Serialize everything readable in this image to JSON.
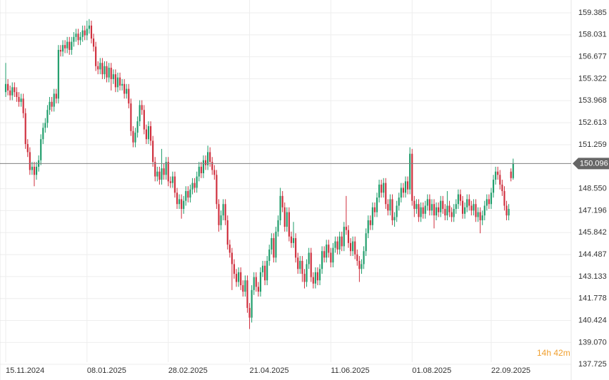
{
  "chart_data": {
    "type": "candlestick",
    "up_color": "#1f9d6b",
    "down_color": "#cf2f3d",
    "price_line_color": "#808080",
    "price_tag_color": "#666666",
    "countdown_color": "#f0a030",
    "grid": true,
    "countdown": "14h 42m",
    "last_price": 150.096,
    "ylim": [
      136.758,
      160.176
    ],
    "yticks": [
      159.385,
      158.031,
      156.677,
      155.322,
      153.968,
      152.613,
      151.259,
      {
        "value": 148.55,
        "label": "148.550"
      },
      147.196,
      145.842,
      144.487,
      143.133,
      141.778,
      140.424,
      {
        "value": 139.07,
        "label": "139.070"
      },
      137.725
    ],
    "xlim": [
      -2.6,
      257.4
    ],
    "xticks": [
      {
        "value": 0,
        "label": "15.11.2024"
      },
      {
        "value": 37,
        "label": "08.01.2025"
      },
      {
        "value": 74,
        "label": "28.02.2025"
      },
      {
        "value": 111,
        "label": "21.04.2025"
      },
      {
        "value": 148,
        "label": "11.06.2025"
      },
      {
        "value": 185,
        "label": "01.08.2025"
      },
      {
        "value": 221,
        "label": "22.09.2025"
      }
    ],
    "ohlc": [
      [
        154.5,
        156.3,
        154.2,
        155.0
      ],
      [
        155.0,
        155.3,
        154.3,
        154.6
      ],
      [
        154.6,
        154.9,
        154.0,
        154.3
      ],
      [
        154.3,
        155.1,
        154.0,
        154.8
      ],
      [
        154.8,
        155.1,
        154.2,
        154.5
      ],
      [
        154.5,
        154.8,
        153.9,
        154.2
      ],
      [
        154.2,
        154.5,
        153.6,
        153.9
      ],
      [
        153.9,
        154.4,
        153.6,
        154.1
      ],
      [
        154.1,
        154.4,
        152.9,
        153.2
      ],
      [
        153.2,
        153.5,
        151.0,
        151.3
      ],
      [
        151.3,
        151.6,
        150.5,
        150.8
      ],
      [
        150.8,
        151.1,
        149.4,
        149.7
      ],
      [
        149.7,
        150.2,
        149.4,
        149.9
      ],
      [
        149.9,
        150.2,
        148.7,
        149.4
      ],
      [
        149.4,
        150.2,
        149.1,
        149.9
      ],
      [
        149.9,
        150.6,
        149.6,
        150.3
      ],
      [
        150.3,
        151.9,
        150.0,
        151.6
      ],
      [
        151.6,
        152.6,
        151.3,
        152.3
      ],
      [
        152.3,
        152.9,
        152.0,
        152.6
      ],
      [
        152.6,
        153.7,
        152.3,
        153.4
      ],
      [
        153.4,
        154.2,
        153.1,
        153.9
      ],
      [
        153.9,
        154.2,
        153.3,
        153.6
      ],
      [
        153.6,
        154.7,
        153.3,
        154.4
      ],
      [
        154.4,
        154.7,
        153.8,
        154.1
      ],
      [
        154.1,
        157.4,
        153.8,
        157.1
      ],
      [
        157.1,
        157.4,
        156.7,
        157.0
      ],
      [
        157.0,
        157.7,
        156.7,
        157.4
      ],
      [
        157.4,
        157.7,
        156.9,
        157.2
      ],
      [
        157.2,
        157.9,
        156.9,
        157.6
      ],
      [
        157.6,
        157.9,
        156.8,
        157.1
      ],
      [
        157.1,
        157.9,
        156.8,
        157.6
      ],
      [
        157.6,
        158.2,
        157.3,
        157.9
      ],
      [
        157.9,
        158.4,
        157.6,
        158.1
      ],
      [
        158.1,
        158.4,
        157.4,
        157.7
      ],
      [
        157.7,
        158.2,
        157.4,
        157.9
      ],
      [
        157.9,
        158.6,
        157.6,
        158.3
      ],
      [
        158.3,
        158.6,
        157.7,
        158.0
      ],
      [
        158.0,
        158.9,
        157.7,
        158.4
      ],
      [
        158.4,
        159.0,
        158.1,
        158.6
      ],
      [
        158.6,
        158.9,
        157.5,
        157.8
      ],
      [
        157.8,
        158.1,
        157.0,
        157.3
      ],
      [
        157.3,
        157.6,
        155.8,
        156.1
      ],
      [
        156.1,
        156.4,
        155.6,
        155.9
      ],
      [
        155.9,
        156.6,
        155.6,
        156.3
      ],
      [
        156.3,
        156.6,
        155.3,
        155.6
      ],
      [
        155.6,
        156.4,
        155.3,
        156.1
      ],
      [
        156.1,
        156.4,
        155.1,
        155.4
      ],
      [
        155.4,
        156.3,
        155.1,
        156.0
      ],
      [
        156.0,
        156.3,
        154.6,
        155.3
      ],
      [
        155.3,
        155.9,
        155.0,
        155.6
      ],
      [
        155.6,
        155.9,
        154.5,
        154.8
      ],
      [
        154.8,
        155.7,
        154.5,
        155.4
      ],
      [
        155.4,
        155.7,
        154.6,
        154.9
      ],
      [
        154.9,
        155.3,
        154.6,
        155.0
      ],
      [
        155.0,
        155.3,
        154.1,
        154.4
      ],
      [
        154.4,
        155.0,
        154.1,
        154.7
      ],
      [
        154.7,
        155.0,
        153.5,
        153.8
      ],
      [
        153.8,
        154.1,
        151.8,
        152.1
      ],
      [
        152.1,
        152.4,
        151.1,
        151.4
      ],
      [
        151.4,
        152.3,
        151.1,
        152.0
      ],
      [
        152.0,
        153.0,
        151.7,
        152.7
      ],
      [
        152.7,
        154.0,
        152.4,
        153.7
      ],
      [
        153.7,
        154.0,
        153.1,
        153.4
      ],
      [
        153.4,
        153.7,
        151.9,
        152.2
      ],
      [
        152.2,
        152.5,
        151.3,
        151.6
      ],
      [
        151.6,
        152.7,
        151.3,
        152.4
      ],
      [
        152.4,
        152.7,
        151.2,
        151.5
      ],
      [
        151.5,
        151.8,
        149.9,
        150.2
      ],
      [
        150.2,
        150.5,
        149.0,
        149.3
      ],
      [
        149.3,
        149.9,
        149.0,
        149.6
      ],
      [
        149.6,
        149.9,
        148.8,
        149.1
      ],
      [
        149.1,
        151.0,
        148.8,
        149.8
      ],
      [
        149.8,
        150.1,
        149.1,
        149.4
      ],
      [
        149.4,
        150.5,
        149.1,
        150.2
      ],
      [
        150.2,
        150.5,
        148.7,
        149.0
      ],
      [
        149.0,
        149.3,
        148.6,
        148.9
      ],
      [
        148.9,
        149.6,
        148.6,
        149.3
      ],
      [
        149.3,
        149.6,
        148.0,
        148.3
      ],
      [
        148.3,
        148.6,
        147.3,
        147.6
      ],
      [
        147.6,
        148.2,
        147.3,
        147.9
      ],
      [
        147.9,
        148.2,
        146.7,
        147.3
      ],
      [
        147.3,
        148.1,
        147.0,
        147.8
      ],
      [
        147.8,
        148.7,
        147.5,
        148.4
      ],
      [
        148.4,
        148.7,
        147.7,
        148.0
      ],
      [
        148.0,
        148.8,
        147.7,
        148.5
      ],
      [
        148.5,
        149.2,
        148.2,
        148.9
      ],
      [
        148.9,
        149.2,
        148.3,
        148.6
      ],
      [
        148.6,
        149.6,
        148.3,
        149.3
      ],
      [
        149.3,
        150.2,
        149.0,
        149.9
      ],
      [
        149.9,
        150.2,
        149.2,
        149.5
      ],
      [
        149.5,
        150.6,
        149.2,
        150.3
      ],
      [
        150.3,
        150.6,
        149.7,
        150.0
      ],
      [
        150.0,
        151.2,
        149.7,
        150.8
      ],
      [
        150.8,
        151.1,
        149.9,
        150.2
      ],
      [
        150.2,
        150.5,
        149.4,
        149.7
      ],
      [
        149.7,
        150.0,
        149.1,
        149.4
      ],
      [
        149.4,
        149.7,
        147.3,
        147.6
      ],
      [
        147.6,
        147.9,
        145.9,
        146.3
      ],
      [
        146.3,
        147.2,
        146.0,
        146.9
      ],
      [
        146.9,
        147.9,
        146.6,
        147.6
      ],
      [
        147.6,
        147.9,
        146.3,
        146.6
      ],
      [
        146.6,
        146.9,
        144.8,
        145.1
      ],
      [
        145.1,
        145.4,
        144.3,
        144.6
      ],
      [
        144.6,
        144.9,
        142.3,
        143.9
      ],
      [
        143.9,
        144.2,
        143.0,
        143.3
      ],
      [
        143.3,
        143.6,
        142.5,
        142.8
      ],
      [
        142.8,
        143.7,
        142.5,
        143.4
      ],
      [
        143.4,
        143.7,
        142.3,
        142.6
      ],
      [
        142.6,
        142.9,
        141.9,
        142.2
      ],
      [
        142.2,
        143.2,
        141.9,
        142.9
      ],
      [
        142.9,
        143.2,
        140.9,
        141.2
      ],
      [
        141.2,
        141.5,
        139.9,
        140.6
      ],
      [
        140.6,
        142.6,
        140.3,
        142.3
      ],
      [
        142.3,
        143.4,
        142.0,
        143.1
      ],
      [
        143.1,
        143.4,
        142.2,
        142.5
      ],
      [
        142.5,
        142.8,
        141.9,
        142.2
      ],
      [
        142.2,
        143.7,
        141.9,
        143.4
      ],
      [
        143.4,
        144.1,
        143.1,
        143.8
      ],
      [
        143.8,
        144.1,
        142.6,
        142.9
      ],
      [
        142.9,
        144.4,
        142.6,
        144.1
      ],
      [
        144.1,
        145.1,
        143.8,
        144.8
      ],
      [
        144.8,
        145.8,
        144.5,
        145.5
      ],
      [
        145.5,
        145.8,
        144.0,
        144.3
      ],
      [
        144.3,
        146.2,
        144.0,
        145.9
      ],
      [
        145.9,
        146.9,
        145.6,
        146.6
      ],
      [
        146.6,
        148.6,
        146.3,
        148.1
      ],
      [
        148.1,
        148.4,
        147.1,
        147.4
      ],
      [
        147.4,
        147.7,
        145.9,
        146.2
      ],
      [
        146.2,
        147.4,
        145.9,
        147.1
      ],
      [
        147.1,
        147.4,
        145.3,
        145.6
      ],
      [
        145.6,
        145.9,
        144.9,
        145.2
      ],
      [
        145.2,
        146.5,
        144.9,
        145.5
      ],
      [
        145.5,
        145.8,
        144.0,
        144.3
      ],
      [
        144.3,
        144.6,
        143.3,
        143.6
      ],
      [
        143.6,
        144.4,
        143.3,
        144.1
      ],
      [
        144.1,
        144.4,
        142.8,
        143.3
      ],
      [
        143.3,
        143.6,
        142.4,
        142.8
      ],
      [
        142.8,
        144.2,
        142.5,
        143.9
      ],
      [
        143.9,
        144.9,
        143.6,
        144.6
      ],
      [
        144.6,
        144.9,
        142.8,
        143.1
      ],
      [
        143.1,
        143.4,
        142.4,
        142.7
      ],
      [
        142.7,
        143.7,
        142.4,
        143.4
      ],
      [
        143.4,
        143.7,
        142.6,
        142.9
      ],
      [
        142.9,
        143.9,
        142.6,
        143.6
      ],
      [
        143.6,
        145.0,
        143.3,
        144.7
      ],
      [
        144.7,
        145.0,
        144.0,
        144.3
      ],
      [
        144.3,
        145.4,
        144.0,
        145.1
      ],
      [
        145.1,
        145.4,
        144.3,
        144.6
      ],
      [
        144.6,
        144.9,
        143.7,
        144.0
      ],
      [
        144.0,
        145.2,
        143.7,
        144.9
      ],
      [
        144.9,
        145.6,
        144.6,
        145.3
      ],
      [
        145.3,
        145.6,
        144.5,
        144.8
      ],
      [
        144.8,
        145.9,
        144.5,
        145.6
      ],
      [
        145.6,
        145.9,
        144.7,
        145.0
      ],
      [
        145.0,
        146.5,
        144.7,
        146.2
      ],
      [
        146.2,
        148.1,
        145.7,
        146.0
      ],
      [
        146.0,
        146.3,
        144.9,
        145.2
      ],
      [
        145.2,
        145.5,
        144.4,
        144.7
      ],
      [
        144.7,
        145.6,
        144.4,
        145.3
      ],
      [
        145.3,
        145.6,
        144.2,
        144.5
      ],
      [
        144.5,
        144.8,
        143.8,
        144.1
      ],
      [
        144.1,
        144.4,
        142.8,
        143.6
      ],
      [
        143.6,
        144.2,
        143.3,
        143.9
      ],
      [
        143.9,
        145.0,
        143.6,
        144.7
      ],
      [
        144.7,
        146.1,
        144.4,
        145.8
      ],
      [
        145.8,
        146.9,
        145.5,
        146.6
      ],
      [
        146.6,
        146.9,
        146.0,
        146.3
      ],
      [
        146.3,
        147.7,
        146.0,
        147.4
      ],
      [
        147.4,
        147.7,
        146.8,
        147.1
      ],
      [
        147.1,
        148.3,
        146.8,
        148.0
      ],
      [
        148.0,
        149.1,
        147.7,
        148.8
      ],
      [
        148.8,
        149.1,
        148.0,
        148.3
      ],
      [
        148.3,
        149.2,
        148.0,
        148.9
      ],
      [
        148.9,
        149.2,
        147.3,
        147.6
      ],
      [
        147.6,
        147.9,
        146.9,
        147.2
      ],
      [
        147.2,
        148.2,
        146.9,
        147.9
      ],
      [
        147.9,
        148.2,
        146.3,
        146.6
      ],
      [
        146.6,
        147.1,
        146.2,
        146.8
      ],
      [
        146.8,
        147.8,
        146.5,
        147.5
      ],
      [
        147.5,
        148.3,
        147.2,
        148.0
      ],
      [
        148.0,
        148.9,
        147.7,
        148.6
      ],
      [
        148.6,
        148.9,
        148.0,
        148.3
      ],
      [
        148.3,
        149.3,
        148.0,
        149.0
      ],
      [
        149.0,
        149.3,
        148.2,
        148.5
      ],
      [
        148.5,
        151.1,
        148.2,
        150.7
      ],
      [
        150.7,
        151.0,
        147.5,
        147.8
      ],
      [
        147.8,
        148.1,
        146.8,
        147.3
      ],
      [
        147.3,
        147.9,
        147.0,
        147.6
      ],
      [
        147.6,
        147.9,
        146.5,
        146.8
      ],
      [
        146.8,
        147.7,
        146.5,
        147.4
      ],
      [
        147.4,
        147.7,
        146.7,
        147.0
      ],
      [
        147.0,
        147.8,
        146.7,
        147.5
      ],
      [
        147.5,
        148.2,
        147.2,
        147.9
      ],
      [
        147.9,
        148.2,
        146.9,
        147.2
      ],
      [
        147.2,
        147.9,
        146.9,
        147.6
      ],
      [
        147.6,
        147.9,
        146.1,
        146.9
      ],
      [
        146.9,
        147.7,
        146.6,
        147.4
      ],
      [
        147.4,
        147.7,
        146.8,
        147.1
      ],
      [
        147.1,
        148.1,
        146.8,
        147.8
      ],
      [
        147.8,
        148.1,
        147.0,
        147.3
      ],
      [
        147.3,
        147.6,
        146.6,
        146.9
      ],
      [
        146.9,
        148.4,
        146.6,
        147.5
      ],
      [
        147.5,
        147.8,
        146.8,
        147.1
      ],
      [
        147.1,
        147.4,
        146.5,
        146.8
      ],
      [
        146.8,
        147.6,
        146.5,
        147.3
      ],
      [
        147.3,
        147.9,
        147.0,
        147.6
      ],
      [
        147.6,
        148.5,
        147.3,
        148.2
      ],
      [
        148.2,
        148.5,
        147.5,
        147.8
      ],
      [
        147.8,
        148.1,
        146.7,
        147.0
      ],
      [
        147.0,
        147.7,
        146.7,
        147.4
      ],
      [
        147.4,
        148.2,
        147.1,
        147.9
      ],
      [
        147.9,
        148.2,
        147.2,
        147.5
      ],
      [
        147.5,
        147.8,
        146.9,
        147.2
      ],
      [
        147.2,
        147.9,
        146.9,
        147.6
      ],
      [
        147.6,
        147.9,
        146.5,
        146.8
      ],
      [
        146.8,
        147.4,
        146.5,
        147.1
      ],
      [
        147.1,
        147.4,
        145.8,
        146.6
      ],
      [
        146.6,
        147.2,
        146.3,
        146.9
      ],
      [
        146.9,
        147.8,
        146.6,
        147.5
      ],
      [
        147.5,
        148.2,
        147.2,
        147.9
      ],
      [
        147.9,
        148.2,
        147.3,
        147.6
      ],
      [
        147.6,
        148.6,
        147.3,
        148.3
      ],
      [
        148.3,
        149.4,
        148.0,
        149.1
      ],
      [
        149.1,
        149.9,
        148.8,
        149.6
      ],
      [
        149.6,
        149.9,
        149.1,
        149.4
      ],
      [
        149.4,
        149.7,
        148.5,
        148.8
      ],
      [
        148.8,
        149.1,
        148.1,
        148.4
      ],
      [
        148.4,
        148.7,
        147.2,
        147.5
      ],
      [
        147.5,
        147.8,
        146.6,
        146.9
      ],
      [
        146.9,
        147.6,
        146.6,
        147.3
      ],
      [
        149.6,
        149.8,
        149.0,
        149.2
      ],
      [
        149.2,
        150.4,
        149.1,
        150.096
      ]
    ]
  }
}
